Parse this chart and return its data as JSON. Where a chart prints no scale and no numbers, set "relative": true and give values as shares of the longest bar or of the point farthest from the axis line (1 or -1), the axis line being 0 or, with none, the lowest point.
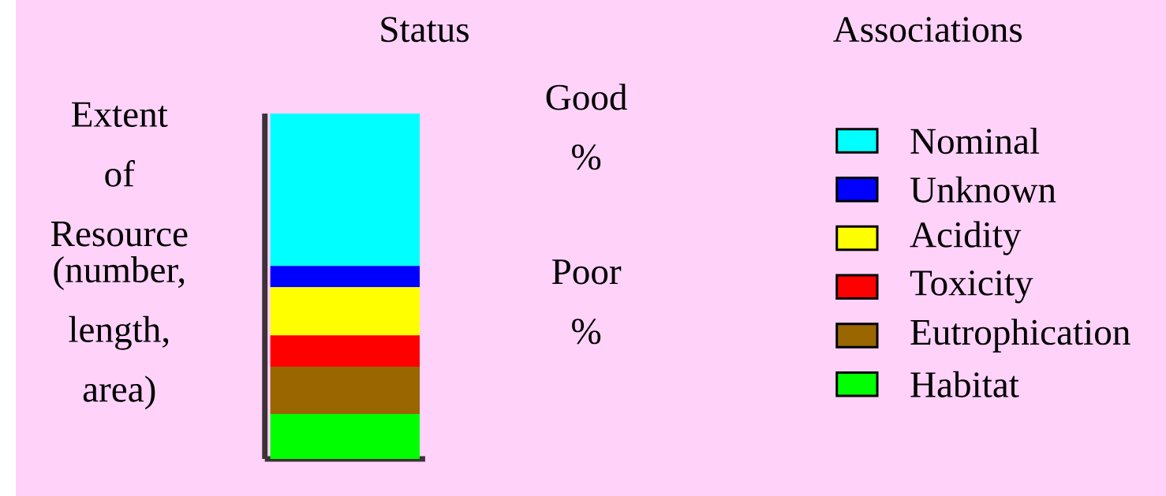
{
  "chart_data": {
    "type": "bar",
    "stacked": true,
    "relative": true,
    "title": "Status",
    "legend_title": "Associations",
    "ylabel": "Extent of Resource",
    "categories": [
      null
    ],
    "legend": "right",
    "annotations": [
      "(number, length, area)",
      "Good %",
      "Poor %"
    ],
    "series": [
      {
        "name": "Habitat",
        "color": "#00ff00",
        "values": [
          0.13
        ]
      },
      {
        "name": "Eutrophication",
        "color": "#996600",
        "values": [
          0.137
        ]
      },
      {
        "name": "Toxicity",
        "color": "#ff0000",
        "values": [
          0.091
        ]
      },
      {
        "name": "Acidity",
        "color": "#ffff00",
        "values": [
          0.139
        ]
      },
      {
        "name": "Unknown",
        "color": "#0000ff",
        "values": [
          0.062
        ]
      },
      {
        "name": "Nominal",
        "color": "#00ffff",
        "values": [
          0.441
        ]
      }
    ]
  }
}
